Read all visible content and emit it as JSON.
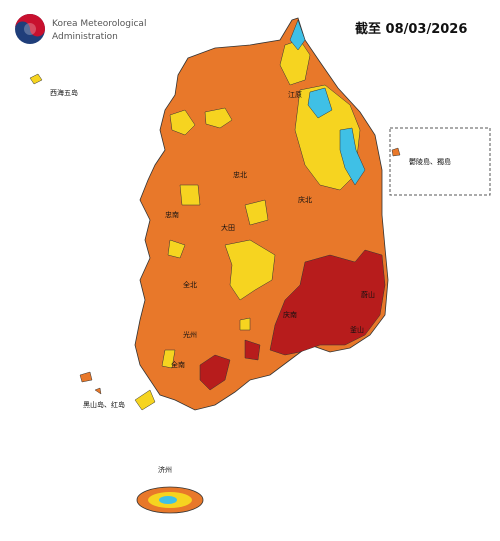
{
  "header": {
    "organization": [
      "Korea Meteorological",
      "Administration"
    ],
    "title": "截至 08/03/2026"
  },
  "islands": {
    "west_sea": "西海五岛",
    "ulleung_dokdo": "鬱陵島、獨島",
    "heuksan_hong": "黑山岛、红岛",
    "jeju": "济州"
  },
  "regions": [
    "江原",
    "忠北",
    "忠南",
    "大田",
    "庆北",
    "全北",
    "光州",
    "全南",
    "庆南",
    "釜山",
    "蔚山"
  ]
}
